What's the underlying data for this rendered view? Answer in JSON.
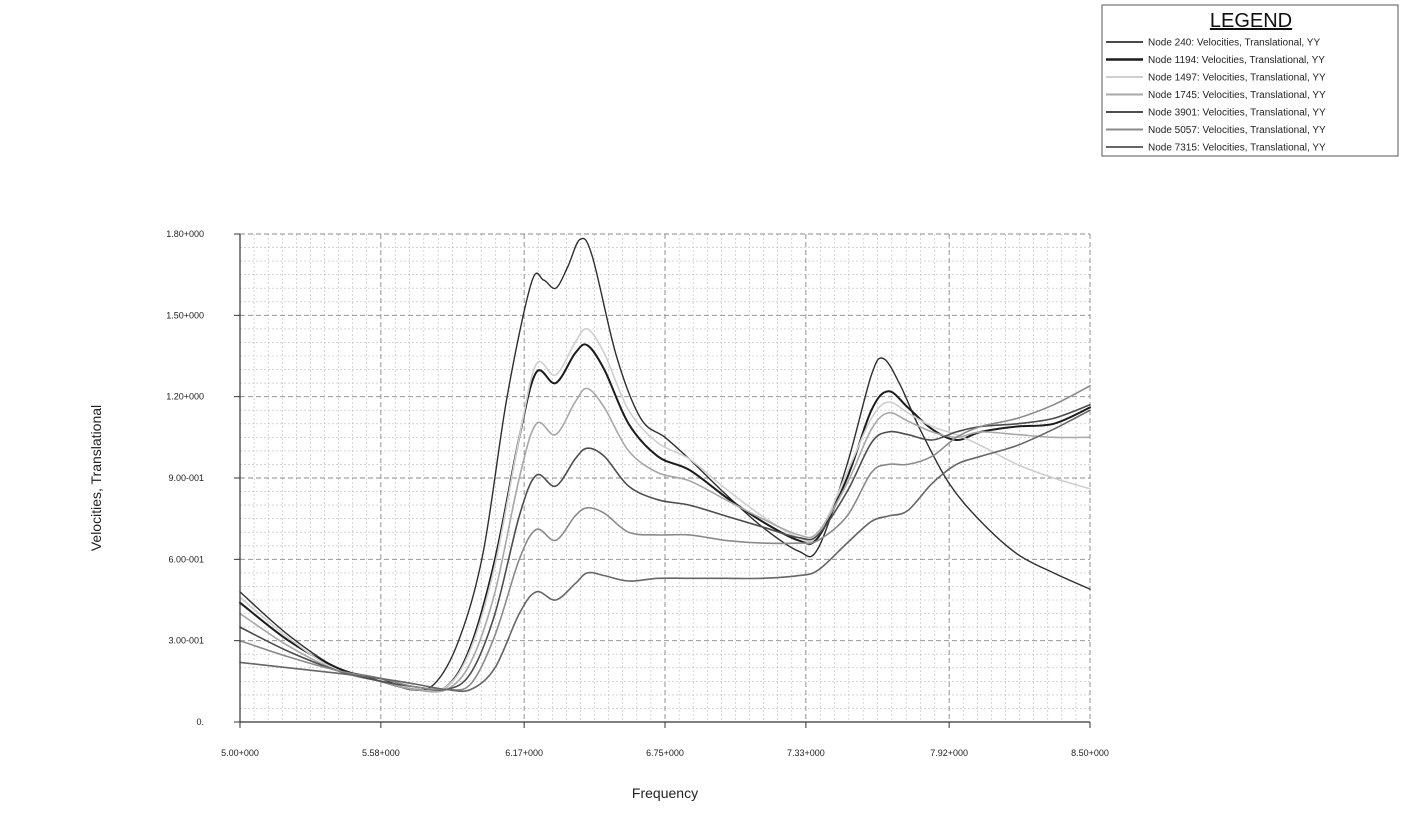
{
  "chart_data": {
    "type": "line",
    "title": "",
    "xlabel": "Frequency",
    "ylabel": "Velocities, Translational",
    "xlim": [
      5.0,
      8.5
    ],
    "ylim": [
      0,
      1.8
    ],
    "x_tick_values": [
      5.0,
      5.58,
      6.17,
      6.75,
      7.33,
      7.92,
      8.5
    ],
    "x_tick_labels": [
      "5.00+000",
      "5.58+000",
      "6.17+000",
      "6.75+000",
      "7.33+000",
      "7.92+000",
      "8.50+000"
    ],
    "y_tick_values": [
      0,
      0.3,
      0.6,
      0.9,
      1.2,
      1.5,
      1.8
    ],
    "y_tick_labels": [
      "0.",
      "3.00-001",
      "6.00-001",
      "9.00-001",
      "1.20+000",
      "1.50+000",
      "1.80+000"
    ],
    "grid": true,
    "legend": {
      "title": "LEGEND",
      "position": "top-right"
    },
    "series": [
      {
        "name": "Node 240: Velocities, Translational, YY",
        "color": "#2f2f2f",
        "width": 1.4,
        "points": [
          [
            5.0,
            0.48
          ],
          [
            5.2,
            0.32
          ],
          [
            5.4,
            0.2
          ],
          [
            5.58,
            0.16
          ],
          [
            5.7,
            0.12
          ],
          [
            5.8,
            0.14
          ],
          [
            5.9,
            0.3
          ],
          [
            6.0,
            0.62
          ],
          [
            6.1,
            1.2
          ],
          [
            6.2,
            1.62
          ],
          [
            6.25,
            1.63
          ],
          [
            6.3,
            1.6
          ],
          [
            6.35,
            1.68
          ],
          [
            6.4,
            1.78
          ],
          [
            6.45,
            1.72
          ],
          [
            6.55,
            1.35
          ],
          [
            6.65,
            1.12
          ],
          [
            6.75,
            1.05
          ],
          [
            6.85,
            0.97
          ],
          [
            7.0,
            0.84
          ],
          [
            7.15,
            0.72
          ],
          [
            7.3,
            0.63
          ],
          [
            7.38,
            0.64
          ],
          [
            7.5,
            0.95
          ],
          [
            7.6,
            1.28
          ],
          [
            7.65,
            1.34
          ],
          [
            7.72,
            1.24
          ],
          [
            7.8,
            1.08
          ],
          [
            7.92,
            0.88
          ],
          [
            8.05,
            0.74
          ],
          [
            8.2,
            0.62
          ],
          [
            8.35,
            0.55
          ],
          [
            8.5,
            0.49
          ]
        ]
      },
      {
        "name": "Node 1194: Velocities, Translational, YY",
        "color": "#1c1c1c",
        "width": 2.0,
        "points": [
          [
            5.0,
            0.44
          ],
          [
            5.2,
            0.3
          ],
          [
            5.4,
            0.2
          ],
          [
            5.58,
            0.15
          ],
          [
            5.72,
            0.12
          ],
          [
            5.85,
            0.13
          ],
          [
            5.95,
            0.28
          ],
          [
            6.05,
            0.6
          ],
          [
            6.15,
            1.05
          ],
          [
            6.22,
            1.29
          ],
          [
            6.3,
            1.25
          ],
          [
            6.38,
            1.36
          ],
          [
            6.43,
            1.39
          ],
          [
            6.5,
            1.3
          ],
          [
            6.6,
            1.1
          ],
          [
            6.72,
            0.98
          ],
          [
            6.85,
            0.93
          ],
          [
            7.0,
            0.83
          ],
          [
            7.15,
            0.74
          ],
          [
            7.3,
            0.67
          ],
          [
            7.38,
            0.68
          ],
          [
            7.5,
            0.9
          ],
          [
            7.6,
            1.15
          ],
          [
            7.67,
            1.22
          ],
          [
            7.75,
            1.16
          ],
          [
            7.85,
            1.08
          ],
          [
            7.95,
            1.04
          ],
          [
            8.05,
            1.07
          ],
          [
            8.2,
            1.09
          ],
          [
            8.35,
            1.1
          ],
          [
            8.5,
            1.16
          ]
        ]
      },
      {
        "name": "Node 1497: Velocities, Translational, YY",
        "color": "#cfcfcf",
        "width": 1.6,
        "points": [
          [
            5.0,
            0.46
          ],
          [
            5.2,
            0.31
          ],
          [
            5.4,
            0.19
          ],
          [
            5.58,
            0.15
          ],
          [
            5.72,
            0.12
          ],
          [
            5.85,
            0.13
          ],
          [
            5.95,
            0.27
          ],
          [
            6.05,
            0.58
          ],
          [
            6.15,
            1.05
          ],
          [
            6.22,
            1.32
          ],
          [
            6.3,
            1.28
          ],
          [
            6.38,
            1.4
          ],
          [
            6.43,
            1.45
          ],
          [
            6.5,
            1.36
          ],
          [
            6.6,
            1.15
          ],
          [
            6.72,
            1.03
          ],
          [
            6.85,
            0.97
          ],
          [
            7.0,
            0.86
          ],
          [
            7.15,
            0.76
          ],
          [
            7.3,
            0.68
          ],
          [
            7.38,
            0.69
          ],
          [
            7.5,
            0.92
          ],
          [
            7.6,
            1.12
          ],
          [
            7.67,
            1.18
          ],
          [
            7.75,
            1.14
          ],
          [
            7.85,
            1.09
          ],
          [
            7.95,
            1.06
          ],
          [
            8.05,
            1.02
          ],
          [
            8.2,
            0.95
          ],
          [
            8.35,
            0.9
          ],
          [
            8.5,
            0.86
          ]
        ]
      },
      {
        "name": "Node 1745: Velocities, Translational, YY",
        "color": "#a8a8a8",
        "width": 1.6,
        "points": [
          [
            5.0,
            0.4
          ],
          [
            5.2,
            0.28
          ],
          [
            5.4,
            0.19
          ],
          [
            5.58,
            0.15
          ],
          [
            5.72,
            0.12
          ],
          [
            5.85,
            0.12
          ],
          [
            5.95,
            0.22
          ],
          [
            6.05,
            0.48
          ],
          [
            6.15,
            0.9
          ],
          [
            6.22,
            1.1
          ],
          [
            6.3,
            1.06
          ],
          [
            6.38,
            1.18
          ],
          [
            6.43,
            1.23
          ],
          [
            6.5,
            1.16
          ],
          [
            6.6,
            1.0
          ],
          [
            6.72,
            0.92
          ],
          [
            6.85,
            0.89
          ],
          [
            7.0,
            0.82
          ],
          [
            7.15,
            0.75
          ],
          [
            7.3,
            0.69
          ],
          [
            7.38,
            0.7
          ],
          [
            7.5,
            0.88
          ],
          [
            7.6,
            1.08
          ],
          [
            7.67,
            1.14
          ],
          [
            7.75,
            1.11
          ],
          [
            7.85,
            1.07
          ],
          [
            7.95,
            1.05
          ],
          [
            8.05,
            1.07
          ],
          [
            8.2,
            1.06
          ],
          [
            8.35,
            1.05
          ],
          [
            8.5,
            1.05
          ]
        ]
      },
      {
        "name": "Node 3901: Velocities, Translational, YY",
        "color": "#4d4d4d",
        "width": 1.6,
        "points": [
          [
            5.0,
            0.35
          ],
          [
            5.2,
            0.26
          ],
          [
            5.4,
            0.19
          ],
          [
            5.58,
            0.15
          ],
          [
            5.72,
            0.13
          ],
          [
            5.85,
            0.12
          ],
          [
            5.95,
            0.18
          ],
          [
            6.05,
            0.4
          ],
          [
            6.15,
            0.76
          ],
          [
            6.22,
            0.91
          ],
          [
            6.3,
            0.87
          ],
          [
            6.38,
            0.97
          ],
          [
            6.43,
            1.01
          ],
          [
            6.5,
            0.98
          ],
          [
            6.6,
            0.87
          ],
          [
            6.72,
            0.82
          ],
          [
            6.85,
            0.8
          ],
          [
            7.0,
            0.76
          ],
          [
            7.15,
            0.72
          ],
          [
            7.3,
            0.68
          ],
          [
            7.38,
            0.69
          ],
          [
            7.5,
            0.85
          ],
          [
            7.6,
            1.03
          ],
          [
            7.67,
            1.07
          ],
          [
            7.75,
            1.06
          ],
          [
            7.85,
            1.04
          ],
          [
            7.95,
            1.07
          ],
          [
            8.05,
            1.09
          ],
          [
            8.2,
            1.1
          ],
          [
            8.35,
            1.12
          ],
          [
            8.5,
            1.17
          ]
        ]
      },
      {
        "name": "Node 5057: Velocities, Translational, YY",
        "color": "#8a8a8a",
        "width": 1.6,
        "points": [
          [
            5.0,
            0.3
          ],
          [
            5.2,
            0.24
          ],
          [
            5.4,
            0.19
          ],
          [
            5.58,
            0.16
          ],
          [
            5.72,
            0.13
          ],
          [
            5.85,
            0.12
          ],
          [
            5.95,
            0.14
          ],
          [
            6.05,
            0.32
          ],
          [
            6.15,
            0.6
          ],
          [
            6.22,
            0.71
          ],
          [
            6.3,
            0.67
          ],
          [
            6.38,
            0.76
          ],
          [
            6.43,
            0.79
          ],
          [
            6.5,
            0.77
          ],
          [
            6.6,
            0.7
          ],
          [
            6.72,
            0.69
          ],
          [
            6.85,
            0.69
          ],
          [
            7.0,
            0.67
          ],
          [
            7.15,
            0.66
          ],
          [
            7.3,
            0.66
          ],
          [
            7.38,
            0.67
          ],
          [
            7.5,
            0.76
          ],
          [
            7.6,
            0.92
          ],
          [
            7.67,
            0.95
          ],
          [
            7.75,
            0.95
          ],
          [
            7.85,
            0.98
          ],
          [
            7.95,
            1.05
          ],
          [
            8.05,
            1.09
          ],
          [
            8.2,
            1.12
          ],
          [
            8.35,
            1.17
          ],
          [
            8.5,
            1.24
          ]
        ]
      },
      {
        "name": "Node 7315: Velocities, Translational, YY",
        "color": "#666666",
        "width": 1.6,
        "points": [
          [
            5.0,
            0.22
          ],
          [
            5.2,
            0.2
          ],
          [
            5.4,
            0.18
          ],
          [
            5.58,
            0.16
          ],
          [
            5.72,
            0.14
          ],
          [
            5.85,
            0.12
          ],
          [
            5.95,
            0.12
          ],
          [
            6.05,
            0.2
          ],
          [
            6.15,
            0.4
          ],
          [
            6.22,
            0.48
          ],
          [
            6.3,
            0.45
          ],
          [
            6.38,
            0.51
          ],
          [
            6.43,
            0.55
          ],
          [
            6.5,
            0.54
          ],
          [
            6.6,
            0.52
          ],
          [
            6.72,
            0.53
          ],
          [
            6.85,
            0.53
          ],
          [
            7.0,
            0.53
          ],
          [
            7.15,
            0.53
          ],
          [
            7.3,
            0.54
          ],
          [
            7.38,
            0.56
          ],
          [
            7.5,
            0.66
          ],
          [
            7.6,
            0.74
          ],
          [
            7.67,
            0.76
          ],
          [
            7.75,
            0.78
          ],
          [
            7.85,
            0.88
          ],
          [
            7.95,
            0.95
          ],
          [
            8.05,
            0.98
          ],
          [
            8.2,
            1.02
          ],
          [
            8.35,
            1.08
          ],
          [
            8.5,
            1.15
          ]
        ]
      }
    ]
  }
}
